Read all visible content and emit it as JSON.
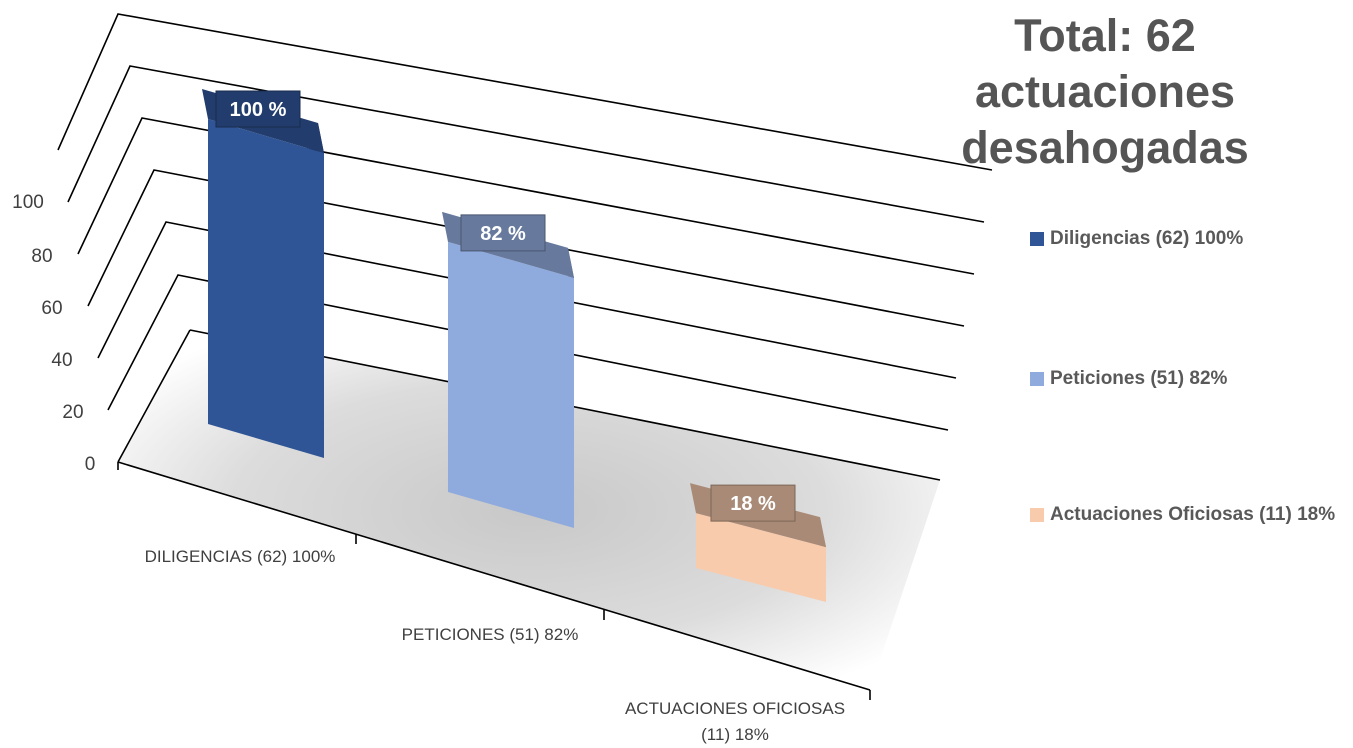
{
  "title_lines": [
    "Total: 62 actuaciones",
    "desahogadas"
  ],
  "legend": [
    {
      "label": "Diligencias  (62) 100%",
      "color": "#2f5597"
    },
    {
      "label": "Peticiones (51) 82%",
      "color": "#8faadc"
    },
    {
      "label": "Actuaciones Oficiosas (11) 18%",
      "color": "#f8cbad"
    }
  ],
  "chart_data": {
    "type": "bar",
    "three_d": true,
    "title": "Total: 62 actuaciones desahogadas",
    "categories": [
      "DILIGENCIAS  (62) 100%",
      "PETICIONES (51) 82%",
      "ACTUACIONES OFICIOSAS (11) 18%"
    ],
    "values": [
      100,
      82,
      18
    ],
    "data_labels": [
      "100 %",
      "82 %",
      "18 %"
    ],
    "colors": [
      "#2f5597",
      "#8faadc",
      "#f8cbad"
    ],
    "yticks": [
      "0",
      "20",
      "40",
      "60",
      "80",
      "100"
    ],
    "ylim": [
      0,
      100
    ],
    "grid": true,
    "legend_position": "right"
  }
}
